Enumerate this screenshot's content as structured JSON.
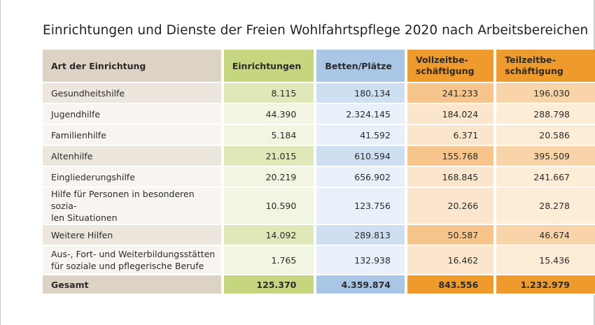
{
  "title": "Einrichtungen und Dienste der Freien Wohlfahrtspflege 2020 nach Arbeitsbereichen",
  "colors": {
    "label_header": "#ddd3c4",
    "einrichtungen_header": "#c5d67f",
    "betten_header": "#a9c6e6",
    "beschaeftigung_header": "#ef9a2c"
  },
  "table": {
    "headers": {
      "art": "Art der Einrichtung",
      "einrichtungen": "Einrichtungen",
      "betten": "Betten/Plätze",
      "vollzeit_line1": "Vollzeitbe-",
      "vollzeit_line2": "schäftigung",
      "teilzeit_line1": "Teilzeitbe-",
      "teilzeit_line2": "schäftigung"
    },
    "rows": [
      {
        "label_line1": "Gesundheitshilfe",
        "label_line2": "",
        "einrichtungen": "8.115",
        "betten": "180.134",
        "vollzeit": "241.233",
        "teilzeit": "196.030"
      },
      {
        "label_line1": "Jugendhilfe",
        "label_line2": "",
        "einrichtungen": "44.390",
        "betten": "2.324.145",
        "vollzeit": "184.024",
        "teilzeit": "288.798"
      },
      {
        "label_line1": "Familienhilfe",
        "label_line2": "",
        "einrichtungen": "5.184",
        "betten": "41.592",
        "vollzeit": "6.371",
        "teilzeit": "20.586"
      },
      {
        "label_line1": "Altenhilfe",
        "label_line2": "",
        "einrichtungen": "21.015",
        "betten": "610.594",
        "vollzeit": "155.768",
        "teilzeit": "395.509"
      },
      {
        "label_line1": "Eingliederungshilfe",
        "label_line2": "",
        "einrichtungen": "20.219",
        "betten": "656.902",
        "vollzeit": "168.845",
        "teilzeit": "241.667"
      },
      {
        "label_line1": "Hilfe für Personen in besonderen sozia-",
        "label_line2": "len Situationen",
        "einrichtungen": "10.590",
        "betten": "123.756",
        "vollzeit": "20.266",
        "teilzeit": "28.278"
      },
      {
        "label_line1": "Weitere Hilfen",
        "label_line2": "",
        "einrichtungen": "14.092",
        "betten": "289.813",
        "vollzeit": "50.587",
        "teilzeit": "46.674"
      },
      {
        "label_line1": "Aus-, Fort- und Weiterbildungsstätten",
        "label_line2": "für soziale und pflegerische Berufe",
        "einrichtungen": "1.765",
        "betten": "132.938",
        "vollzeit": "16.462",
        "teilzeit": "15.436"
      }
    ],
    "total": {
      "label": "Gesamt",
      "einrichtungen": "125.370",
      "betten": "4.359.874",
      "vollzeit": "843.556",
      "teilzeit": "1.232.979"
    }
  }
}
